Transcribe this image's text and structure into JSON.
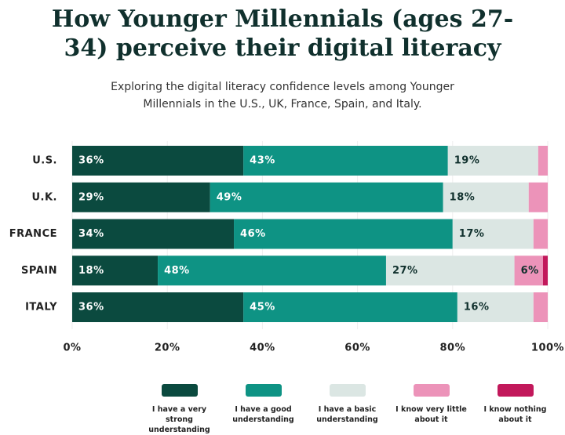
{
  "chart_data": {
    "type": "stacked-bar-horizontal",
    "title": "How Younger Millennials (ages 27-34) perceive their digital literacy",
    "subtitle": "Exploring the digital literacy confidence levels among Younger Millennials in the U.S., UK, France, Spain, and Italy.",
    "categories": [
      "U.S.",
      "U.K.",
      "FRANCE",
      "SPAIN",
      "ITALY"
    ],
    "series": [
      {
        "name": "I have a very strong understanding",
        "color": "#0b4a3f",
        "values": [
          36,
          29,
          34,
          18,
          36
        ],
        "value_labels": [
          "36%",
          "29%",
          "34%",
          "18%",
          "36%"
        ]
      },
      {
        "name": "I have a good understanding",
        "color": "#0e9384",
        "values": [
          43,
          49,
          46,
          48,
          45
        ],
        "value_labels": [
          "43%",
          "49%",
          "46%",
          "48%",
          "45%"
        ]
      },
      {
        "name": "I have a basic understanding",
        "color": "#dbe6e3",
        "values": [
          19,
          18,
          17,
          27,
          16
        ],
        "value_labels": [
          "19%",
          "18%",
          "17%",
          "27%",
          "16%"
        ]
      },
      {
        "name": "I know very little about it",
        "color": "#ec93b9",
        "values": [
          2,
          4,
          3,
          6,
          3
        ],
        "value_labels": [
          null,
          null,
          null,
          "6%",
          null
        ]
      },
      {
        "name": "I know nothing about it",
        "color": "#c2185b",
        "values": [
          0,
          0,
          0,
          1,
          0
        ],
        "value_labels": [
          null,
          null,
          null,
          null,
          null
        ]
      }
    ],
    "xlim": [
      0,
      100
    ],
    "xticks": [
      {
        "value": 0,
        "label": "0%"
      },
      {
        "value": 20,
        "label": "20%"
      },
      {
        "value": 40,
        "label": "40%"
      },
      {
        "value": 60,
        "label": "60%"
      },
      {
        "value": 80,
        "label": "80%"
      },
      {
        "value": 100,
        "label": "100%"
      }
    ],
    "grid": true
  }
}
